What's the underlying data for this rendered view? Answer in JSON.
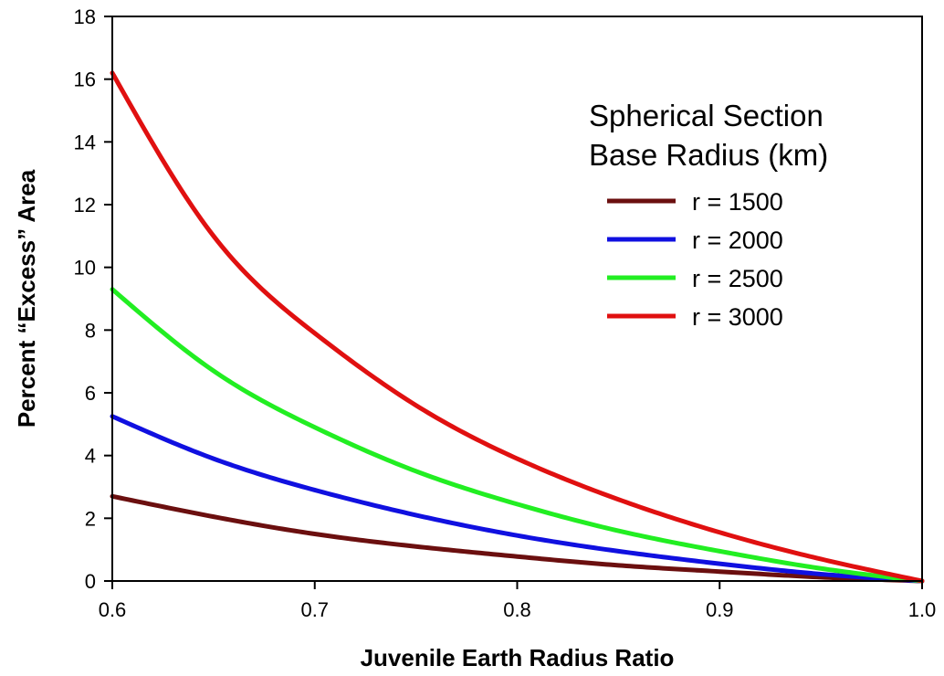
{
  "chart_data": {
    "type": "line",
    "xlabel": "Juvenile Earth Radius Ratio",
    "ylabel": "Percent “Excess” Area",
    "xlim": [
      0.6,
      1.0
    ],
    "ylim": [
      0,
      18
    ],
    "x_ticks": [
      "0.6",
      "0.7",
      "0.8",
      "0.9",
      "1.0"
    ],
    "y_ticks": [
      "0",
      "2",
      "4",
      "6",
      "8",
      "10",
      "12",
      "14",
      "16",
      "18"
    ],
    "grid": false,
    "legend": {
      "title_line1": "Spherical Section",
      "title_line2": "Base Radius (km)",
      "placement": "upper-right"
    },
    "x": [
      0.6,
      0.65,
      0.7,
      0.75,
      0.8,
      0.85,
      0.9,
      0.95,
      1.0
    ],
    "series": [
      {
        "name": "r = 1500",
        "color": "#6b0f0f",
        "values": [
          2.7,
          2.05,
          1.5,
          1.1,
          0.78,
          0.5,
          0.3,
          0.12,
          0.0
        ]
      },
      {
        "name": "r = 2000",
        "color": "#1010e0",
        "values": [
          5.25,
          3.9,
          2.9,
          2.1,
          1.45,
          0.95,
          0.55,
          0.22,
          0.0
        ]
      },
      {
        "name": "r = 2500",
        "color": "#22ee22",
        "values": [
          9.3,
          6.7,
          4.9,
          3.5,
          2.45,
          1.6,
          0.95,
          0.4,
          0.0
        ]
      },
      {
        "name": "r = 3000",
        "color": "#e01010",
        "values": [
          16.2,
          11.0,
          7.9,
          5.6,
          3.9,
          2.6,
          1.55,
          0.7,
          0.0
        ]
      }
    ]
  }
}
